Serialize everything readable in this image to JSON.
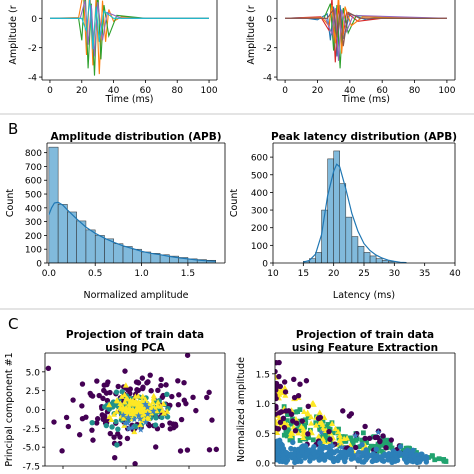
{
  "panel_labels": [
    "B",
    "C"
  ],
  "chart_data": [
    {
      "id": "A_left",
      "type": "line",
      "title": "",
      "xlabel": "Time (ms)",
      "ylabel": "Amplitude (r",
      "xlim": [
        -5,
        105
      ],
      "ylim": [
        -4.2,
        2.2
      ],
      "xticks": [
        0,
        20,
        40,
        60,
        80,
        100
      ],
      "yticks": [
        0,
        -2,
        -4
      ],
      "series": [
        {
          "color": "#ff7f0e",
          "values": [
            [
              0,
              0
            ],
            [
              18,
              0.05
            ],
            [
              21,
              1.8
            ],
            [
              23,
              -2.5
            ],
            [
              25,
              2.2
            ],
            [
              27,
              -3.2
            ],
            [
              29,
              1.5
            ],
            [
              31,
              -3.8
            ],
            [
              33,
              1.2
            ],
            [
              35,
              -1.6
            ],
            [
              37,
              0.6
            ],
            [
              40,
              -0.2
            ],
            [
              45,
              0.1
            ],
            [
              60,
              0
            ],
            [
              100,
              0
            ]
          ]
        },
        {
          "color": "#2ca02c",
          "values": [
            [
              0,
              0
            ],
            [
              18,
              0
            ],
            [
              20,
              -1.5
            ],
            [
              22,
              2.2
            ],
            [
              24,
              -3.4
            ],
            [
              26,
              1.0
            ],
            [
              28,
              -3.9
            ],
            [
              30,
              2.0
            ],
            [
              32,
              -2.8
            ],
            [
              34,
              0.9
            ],
            [
              37,
              -1.2
            ],
            [
              42,
              0.2
            ],
            [
              60,
              0
            ],
            [
              100,
              0
            ]
          ]
        },
        {
          "color": "#9467bd",
          "values": [
            [
              0,
              0
            ],
            [
              19,
              0
            ],
            [
              22,
              1.2
            ],
            [
              24,
              -1.8
            ],
            [
              26,
              0.9
            ],
            [
              28,
              -2.6
            ],
            [
              30,
              1.1
            ],
            [
              33,
              -1.5
            ],
            [
              36,
              0.4
            ],
            [
              45,
              0
            ],
            [
              100,
              0
            ]
          ]
        },
        {
          "color": "#17becf",
          "values": [
            [
              0,
              0
            ],
            [
              20,
              0
            ],
            [
              23,
              -0.9
            ],
            [
              25,
              1.4
            ],
            [
              27,
              -2.1
            ],
            [
              29,
              0.8
            ],
            [
              31,
              -1.6
            ],
            [
              34,
              0.5
            ],
            [
              40,
              0
            ],
            [
              100,
              0
            ]
          ]
        }
      ]
    },
    {
      "id": "A_right",
      "type": "line",
      "title": "",
      "xlabel": "Time (ms)",
      "ylabel": "Amplitude (r",
      "xlim": [
        -5,
        105
      ],
      "ylim": [
        -4.2,
        2.2
      ],
      "xticks": [
        0,
        20,
        40,
        60,
        80,
        100
      ],
      "yticks": [
        0,
        -2,
        -4
      ],
      "series": [
        {
          "color": "#1f77b4",
          "values": [
            [
              0,
              0
            ],
            [
              10,
              0.05
            ],
            [
              20,
              -0.1
            ],
            [
              26,
              0.3
            ],
            [
              28,
              -1.5
            ],
            [
              30,
              0.8
            ],
            [
              32,
              -2.6
            ],
            [
              34,
              0.9
            ],
            [
              36,
              -1.4
            ],
            [
              40,
              0.3
            ],
            [
              50,
              -0.1
            ],
            [
              60,
              0.05
            ],
            [
              100,
              0
            ]
          ]
        },
        {
          "color": "#d62728",
          "values": [
            [
              0,
              0
            ],
            [
              22,
              0.1
            ],
            [
              27,
              -0.8
            ],
            [
              29,
              1.4
            ],
            [
              31,
              -3.0
            ],
            [
              33,
              1.0
            ],
            [
              35,
              -1.8
            ],
            [
              38,
              0.4
            ],
            [
              45,
              -0.2
            ],
            [
              60,
              0
            ],
            [
              100,
              0
            ]
          ]
        },
        {
          "color": "#2ca02c",
          "values": [
            [
              0,
              0
            ],
            [
              24,
              0
            ],
            [
              28,
              1.0
            ],
            [
              30,
              -2.2
            ],
            [
              32,
              0.9
            ],
            [
              34,
              -3.4
            ],
            [
              36,
              0.7
            ],
            [
              39,
              -1.0
            ],
            [
              44,
              0.2
            ],
            [
              60,
              0
            ],
            [
              100,
              0
            ]
          ]
        },
        {
          "color": "#ff7f0e",
          "values": [
            [
              0,
              0
            ],
            [
              23,
              0.05
            ],
            [
              27,
              -0.5
            ],
            [
              29,
              0.9
            ],
            [
              31,
              -1.7
            ],
            [
              33,
              1.6
            ],
            [
              35,
              -2.4
            ],
            [
              37,
              0.8
            ],
            [
              41,
              -0.5
            ],
            [
              48,
              0.1
            ],
            [
              100,
              0
            ]
          ]
        },
        {
          "color": "#9467bd",
          "values": [
            [
              0,
              0
            ],
            [
              25,
              0
            ],
            [
              29,
              -1.1
            ],
            [
              31,
              0.7
            ],
            [
              33,
              -2.9
            ],
            [
              35,
              0.6
            ],
            [
              38,
              -0.9
            ],
            [
              42,
              0.2
            ],
            [
              100,
              0
            ]
          ]
        },
        {
          "color": "#8c564b",
          "values": [
            [
              0,
              0
            ],
            [
              26,
              0
            ],
            [
              30,
              0.6
            ],
            [
              32,
              -1.3
            ],
            [
              34,
              0.5
            ],
            [
              36,
              -1.9
            ],
            [
              39,
              0.4
            ],
            [
              46,
              0
            ],
            [
              100,
              0
            ]
          ]
        }
      ]
    },
    {
      "id": "B_left",
      "type": "bar",
      "title": "Amplitude distribution (APB)",
      "xlabel": "Normalized amplitude",
      "ylabel": "Count",
      "xlim": [
        -0.02,
        1.9
      ],
      "ylim": [
        0,
        870
      ],
      "xticks": [
        0.0,
        0.5,
        1.0,
        1.5
      ],
      "xtick_labels": [
        "0.0",
        "0.5",
        "1.0",
        "1.5"
      ],
      "yticks": [
        0,
        100,
        200,
        300,
        400,
        500,
        600,
        700,
        800
      ],
      "bin_edges": [
        0.0,
        0.1,
        0.2,
        0.3,
        0.4,
        0.5,
        0.6,
        0.7,
        0.8,
        0.9,
        1.0,
        1.1,
        1.2,
        1.3,
        1.4,
        1.5,
        1.6,
        1.7,
        1.8
      ],
      "values": [
        840,
        425,
        370,
        305,
        240,
        200,
        175,
        140,
        120,
        100,
        80,
        70,
        60,
        50,
        40,
        30,
        25,
        20
      ],
      "kde": [
        [
          0.0,
          350
        ],
        [
          0.03,
          400
        ],
        [
          0.06,
          435
        ],
        [
          0.1,
          440
        ],
        [
          0.15,
          420
        ],
        [
          0.2,
          385
        ],
        [
          0.3,
          320
        ],
        [
          0.4,
          260
        ],
        [
          0.5,
          215
        ],
        [
          0.6,
          180
        ],
        [
          0.7,
          150
        ],
        [
          0.8,
          125
        ],
        [
          0.9,
          105
        ],
        [
          1.0,
          85
        ],
        [
          1.1,
          70
        ],
        [
          1.2,
          60
        ],
        [
          1.3,
          48
        ],
        [
          1.4,
          38
        ],
        [
          1.5,
          30
        ],
        [
          1.6,
          22
        ],
        [
          1.7,
          16
        ],
        [
          1.8,
          12
        ]
      ],
      "color": "#6baed6"
    },
    {
      "id": "B_right",
      "type": "bar",
      "title": "Peak latency distribution (APB)",
      "xlabel": "Latency (ms)",
      "ylabel": "Count",
      "xlim": [
        10,
        40
      ],
      "ylim": [
        0,
        680
      ],
      "xticks": [
        10,
        15,
        20,
        25,
        30,
        35,
        40
      ],
      "yticks": [
        0,
        100,
        200,
        300,
        400,
        500,
        600
      ],
      "bin_edges": [
        15,
        16,
        17,
        18,
        19,
        20,
        21,
        22,
        23,
        24,
        25,
        26,
        27,
        28,
        29,
        30
      ],
      "values": [
        10,
        25,
        60,
        300,
        590,
        635,
        450,
        260,
        150,
        95,
        60,
        40,
        25,
        15,
        8
      ],
      "kde": [
        [
          15,
          5
        ],
        [
          16,
          15
        ],
        [
          17,
          50
        ],
        [
          18,
          160
        ],
        [
          19,
          380
        ],
        [
          20,
          520
        ],
        [
          20.5,
          560
        ],
        [
          21,
          545
        ],
        [
          22,
          420
        ],
        [
          23,
          280
        ],
        [
          24,
          180
        ],
        [
          25,
          110
        ],
        [
          26,
          70
        ],
        [
          27,
          45
        ],
        [
          28,
          28
        ],
        [
          29,
          16
        ],
        [
          30,
          9
        ],
        [
          31,
          4
        ],
        [
          32,
          2
        ]
      ],
      "color": "#6baed6"
    },
    {
      "id": "C_left",
      "type": "scatter",
      "title": "Projection of train data\nusing PCA",
      "xlabel": "",
      "ylabel": "Principal component #1",
      "xlim": [
        -8,
        8
      ],
      "ylim": [
        -7.5,
        7.5
      ],
      "yticks": [
        5.0,
        2.5,
        0.0,
        -2.5,
        -5.0,
        -7.5
      ],
      "ytick_labels": [
        "5.0",
        "2.5",
        "0.0",
        "-2.5",
        "-5.0",
        "-7.5"
      ],
      "series": [
        {
          "marker": "circle",
          "color": "#440154",
          "center": [
            0,
            0
          ],
          "spread": [
            2.8,
            2.6
          ],
          "count": 160
        },
        {
          "marker": "circle",
          "color": "#21918c",
          "center": [
            0,
            0
          ],
          "spread": [
            1.3,
            1.0
          ],
          "count": 110
        },
        {
          "marker": "triangle",
          "color": "#fde725",
          "center": [
            0.2,
            0.1
          ],
          "spread": [
            1.2,
            0.9
          ],
          "count": 110
        },
        {
          "marker": "star",
          "color": "#3b82c4",
          "center": [
            0,
            -1.5
          ],
          "spread": [
            1.2,
            0.9
          ],
          "count": 15
        }
      ]
    },
    {
      "id": "C_right",
      "type": "scatter",
      "title": "Projection of train data\nusing Feature Extraction",
      "xlabel": "",
      "ylabel": "Normalized amplitude",
      "xlim": [
        0,
        1
      ],
      "ylim": [
        -0.05,
        1.85
      ],
      "yticks": [
        0.0,
        0.5,
        1.0,
        1.5
      ],
      "ytick_labels": [
        "0.0",
        "0.5",
        "1.0",
        "1.5"
      ],
      "series": [
        {
          "marker": "square",
          "color": "#21a36f",
          "count": 150
        },
        {
          "marker": "triangle",
          "color": "#fde725",
          "count": 100
        },
        {
          "marker": "circle",
          "color": "#440154",
          "count": 70
        },
        {
          "marker": "circle",
          "color": "#2c7fb8",
          "count": 300
        },
        {
          "marker": "star",
          "color": "#3b82c4",
          "count": 6
        }
      ]
    }
  ]
}
